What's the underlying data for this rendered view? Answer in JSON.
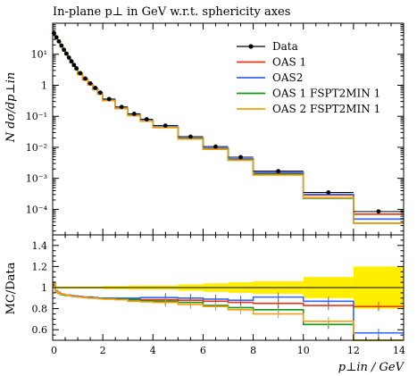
{
  "chart_data": {
    "type": "line",
    "title": "In-plane p⊥ in GeV w.r.t. sphericity axes",
    "top_panel": {
      "ylabel": "N dσ/dp⊥in",
      "yscale": "log",
      "ylim": [
        1.5e-05,
        100
      ],
      "ytick_labels": [
        {
          "value": 10,
          "label": "10¹"
        },
        {
          "value": 1,
          "label": "1"
        },
        {
          "value": 0.1,
          "label": "10⁻¹"
        },
        {
          "value": 0.01,
          "label": "10⁻²"
        },
        {
          "value": 0.001,
          "label": "10⁻³"
        },
        {
          "value": 0.0001,
          "label": "10⁻⁴"
        }
      ]
    },
    "ratio_panel": {
      "ylabel": "MC/Data",
      "ylim": [
        0.5,
        1.5
      ],
      "ytick_labels": [
        "0.6",
        "0.8",
        "1",
        "1.2",
        "1.4"
      ],
      "ytick_values": [
        0.6,
        0.8,
        1.0,
        1.2,
        1.4
      ]
    },
    "xlabel": "p⊥in / GeV",
    "xlim": [
      0,
      14
    ],
    "xtick_labels": [
      "0",
      "2",
      "4",
      "6",
      "8",
      "10",
      "12",
      "14"
    ],
    "xtick_values": [
      0,
      2,
      4,
      6,
      8,
      10,
      12,
      14
    ],
    "bin_edges": [
      0,
      0.1,
      0.2,
      0.3,
      0.4,
      0.5,
      0.6,
      0.7,
      0.8,
      0.9,
      1.0,
      1.2,
      1.4,
      1.6,
      1.8,
      2.0,
      2.5,
      3.0,
      3.5,
      4.0,
      5.0,
      6.0,
      7.0,
      8.0,
      10.0,
      12.0,
      14.0
    ],
    "data": {
      "name": "Data",
      "values": [
        48,
        35,
        26,
        19,
        14,
        10.5,
        7.8,
        5.9,
        4.5,
        3.5,
        2.45,
        1.65,
        1.15,
        0.82,
        0.58,
        0.36,
        0.2,
        0.12,
        0.08,
        0.05,
        0.022,
        0.0105,
        0.0048,
        0.0017,
        0.00035,
        8.5e-05
      ],
      "color": "#000000"
    },
    "series": [
      {
        "name": "OAS 1",
        "color": "#ee3311",
        "ratio": [
          1.03,
          0.97,
          0.95,
          0.94,
          0.935,
          0.93,
          0.93,
          0.925,
          0.92,
          0.92,
          0.915,
          0.91,
          0.91,
          0.905,
          0.9,
          0.9,
          0.895,
          0.89,
          0.885,
          0.885,
          0.88,
          0.87,
          0.86,
          0.85,
          0.83,
          0.82
        ]
      },
      {
        "name": "OAS2",
        "color": "#3366ff",
        "ratio": [
          1.05,
          0.97,
          0.955,
          0.94,
          0.935,
          0.93,
          0.93,
          0.925,
          0.92,
          0.92,
          0.915,
          0.91,
          0.91,
          0.905,
          0.9,
          0.9,
          0.9,
          0.9,
          0.905,
          0.905,
          0.9,
          0.89,
          0.88,
          0.91,
          0.87,
          0.57
        ]
      },
      {
        "name": "OAS 1 FSPT2MIN 1",
        "color": "#109618",
        "ratio": [
          1.02,
          0.96,
          0.945,
          0.935,
          0.93,
          0.925,
          0.925,
          0.92,
          0.915,
          0.915,
          0.91,
          0.905,
          0.905,
          0.9,
          0.9,
          0.895,
          0.89,
          0.885,
          0.875,
          0.87,
          0.86,
          0.83,
          0.81,
          0.79,
          0.65,
          0.42
        ]
      },
      {
        "name": "OAS 2 FSPT2MIN 1",
        "color": "#ff9900",
        "ratio": [
          1.04,
          0.965,
          0.95,
          0.94,
          0.935,
          0.93,
          0.925,
          0.92,
          0.915,
          0.915,
          0.91,
          0.905,
          0.9,
          0.9,
          0.895,
          0.89,
          0.885,
          0.87,
          0.865,
          0.86,
          0.84,
          0.82,
          0.79,
          0.75,
          0.68,
          0.42
        ]
      }
    ],
    "data_uncertainty_band": {
      "color": "#ffee00",
      "half_width": [
        0.01,
        0.01,
        0.01,
        0.01,
        0.01,
        0.01,
        0.01,
        0.01,
        0.01,
        0.01,
        0.01,
        0.01,
        0.01,
        0.01,
        0.01,
        0.015,
        0.015,
        0.02,
        0.02,
        0.02,
        0.03,
        0.04,
        0.05,
        0.06,
        0.1,
        0.2
      ]
    },
    "legend_position": "top-right",
    "grid": false
  }
}
